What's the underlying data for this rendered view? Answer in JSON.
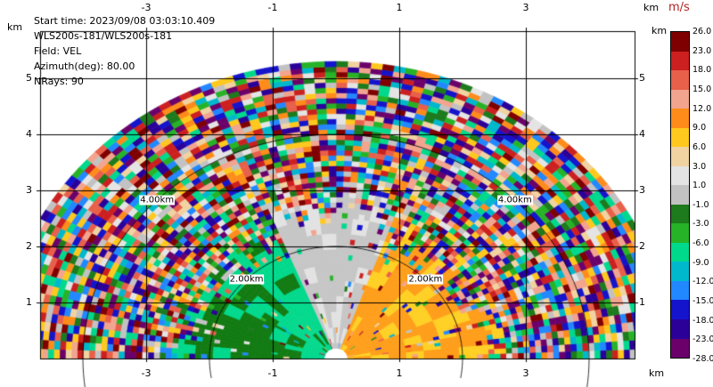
{
  "header": {
    "title_lines": [
      "Start time: 2023/09/08 03:03:10.409",
      "WLS200s-181/WLS200s-181",
      "Field: VEL",
      "Azimuth(deg): 80.00",
      "NRays: 90"
    ]
  },
  "chart_data": {
    "type": "heatmap",
    "plot_kind": "RHI (range-height) Doppler lidar scan, semicircular sweep 0-180 deg elevation",
    "instrument": "WLS200s-181/WLS200s-181",
    "start_time": "2023/09/08 03:03:10.409",
    "field": "VEL",
    "azimuth_deg": 80.0,
    "nrays": 90,
    "max_range_km": 5.3,
    "x_axis": {
      "unit": "km",
      "ticks": [
        -3,
        -1,
        1,
        3
      ],
      "range": [
        -4.7,
        4.7
      ]
    },
    "y_axis": {
      "unit": "km",
      "ticks": [
        1,
        2,
        3,
        4,
        5
      ],
      "range": [
        0,
        5.85
      ]
    },
    "range_rings": [
      {
        "radius_km": 2,
        "label": "2.00km"
      },
      {
        "radius_km": 4,
        "label": "4.00km"
      }
    ],
    "colorbar": {
      "title": "m/s",
      "title_color": "#b22222",
      "boundaries": [
        26,
        23,
        18,
        15,
        12,
        9,
        6,
        3,
        1,
        -1,
        -3,
        -6,
        -9,
        -12,
        -15,
        -18,
        -23,
        -28
      ],
      "colors": [
        "#7f0000",
        "#cc2020",
        "#e8604a",
        "#f2a48e",
        "#ff8c1a",
        "#ffc81e",
        "#f0d3a0",
        "#e4e4e4",
        "#c2c2c2",
        "#1d7a1d",
        "#27b327",
        "#00d98c",
        "#00b8cc",
        "#2288ff",
        "#1414cc",
        "#2a0099",
        "#6b006b"
      ]
    },
    "velocity_field": {
      "coherent_max_range_km": 2.3,
      "sectors": [
        {
          "name": "right-outbound",
          "angle_deg": [
            0,
            70
          ],
          "base_color": "#ff9e1a",
          "patch_color": "#ffd024"
        },
        {
          "name": "zenith-gray",
          "angle_deg": [
            70,
            112
          ],
          "base_color": "#c6c6c6",
          "patch_color": "#e2e2e2",
          "max_range_km": 2.7
        },
        {
          "name": "left-inbound",
          "angle_deg": [
            112,
            180.1
          ],
          "base_color": "#00d98c",
          "patch_color": "#117a11"
        }
      ],
      "noise": "uncorrelated random speckle drawn from the full velocity palette beyond the coherent range"
    }
  }
}
